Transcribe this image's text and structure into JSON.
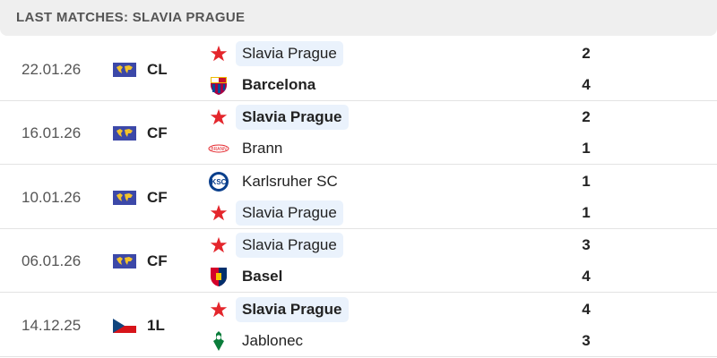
{
  "header": {
    "title": "LAST MATCHES: SLAVIA PRAGUE"
  },
  "colors": {
    "highlight": "#eaf2fc",
    "slavia_red": "#e4262c"
  },
  "matches": [
    {
      "date": "22.01.26",
      "competition": "CL",
      "comp_icon": "world-flag-icon",
      "home": {
        "name": "Slavia Prague",
        "score": "2",
        "icon": "slavia-star-icon",
        "highlight": true,
        "winner": false
      },
      "away": {
        "name": "Barcelona",
        "score": "4",
        "icon": "barcelona-crest-icon",
        "highlight": false,
        "winner": true
      }
    },
    {
      "date": "16.01.26",
      "competition": "CF",
      "comp_icon": "world-flag-icon",
      "home": {
        "name": "Slavia Prague",
        "score": "2",
        "icon": "slavia-star-icon",
        "highlight": true,
        "winner": true
      },
      "away": {
        "name": "Brann",
        "score": "1",
        "icon": "brann-logo-icon",
        "highlight": false,
        "winner": false
      }
    },
    {
      "date": "10.01.26",
      "competition": "CF",
      "comp_icon": "world-flag-icon",
      "home": {
        "name": "Karlsruher SC",
        "score": "1",
        "icon": "ksc-crest-icon",
        "highlight": false,
        "winner": false
      },
      "away": {
        "name": "Slavia Prague",
        "score": "1",
        "icon": "slavia-star-icon",
        "highlight": true,
        "winner": false
      }
    },
    {
      "date": "06.01.26",
      "competition": "CF",
      "comp_icon": "world-flag-icon",
      "home": {
        "name": "Slavia Prague",
        "score": "3",
        "icon": "slavia-star-icon",
        "highlight": true,
        "winner": false
      },
      "away": {
        "name": "Basel",
        "score": "4",
        "icon": "basel-crest-icon",
        "highlight": false,
        "winner": true
      }
    },
    {
      "date": "14.12.25",
      "competition": "1L",
      "comp_icon": "czech-flag-icon",
      "home": {
        "name": "Slavia Prague",
        "score": "4",
        "icon": "slavia-star-icon",
        "highlight": true,
        "winner": true
      },
      "away": {
        "name": "Jablonec",
        "score": "3",
        "icon": "jablonec-crest-icon",
        "highlight": false,
        "winner": false
      }
    }
  ]
}
